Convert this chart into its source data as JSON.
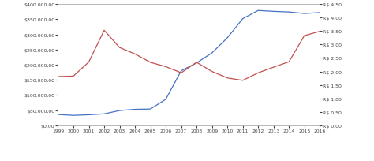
{
  "years": [
    1999,
    2000,
    2001,
    2002,
    2003,
    2004,
    2005,
    2006,
    2007,
    2008,
    2009,
    2010,
    2011,
    2012,
    2013,
    2014,
    2015,
    2016
  ],
  "reservas": [
    36000,
    33000,
    35000,
    38000,
    49000,
    53000,
    54000,
    86000,
    180000,
    206000,
    239000,
    289000,
    352000,
    379000,
    376000,
    374000,
    369000,
    372000
  ],
  "cambio": [
    1.81,
    1.83,
    2.35,
    3.53,
    2.89,
    2.65,
    2.34,
    2.18,
    1.95,
    2.34,
    2.0,
    1.76,
    1.67,
    1.95,
    2.16,
    2.36,
    3.33,
    3.49
  ],
  "reservas_color": "#4472C4",
  "cambio_color": "#C0504D",
  "ylim_left": [
    0,
    400000
  ],
  "ylim_right": [
    0,
    4.5
  ],
  "yticks_left": [
    0,
    50000,
    100000,
    150000,
    200000,
    250000,
    300000,
    350000,
    400000
  ],
  "yticks_right": [
    0.0,
    0.5,
    1.0,
    1.5,
    2.0,
    2.5,
    3.0,
    3.5,
    4.0,
    4.5
  ],
  "bg_color": "#FFFFFF",
  "spine_color": "#AAAAAA",
  "tick_color": "#444444",
  "figsize": [
    4.74,
    2.05
  ],
  "dpi": 100
}
